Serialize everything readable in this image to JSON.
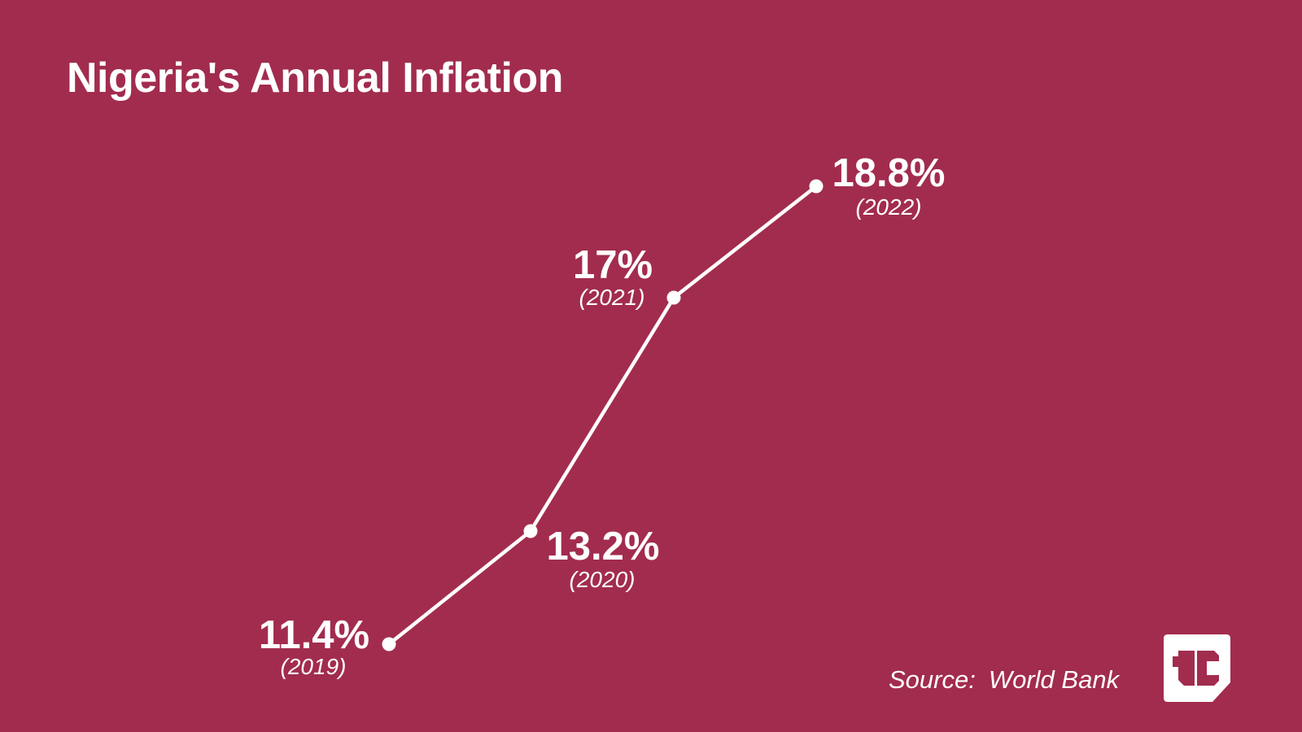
{
  "title": "Nigeria's Annual Inflation",
  "source": {
    "label": "Source:",
    "value": "World Bank"
  },
  "logo": {
    "name": "techcabal-logo",
    "letters": "tc"
  },
  "colors": {
    "background": "#A22C4E",
    "foreground": "#FFFFFF"
  },
  "chart_data": {
    "type": "line",
    "title": "Nigeria's Annual Inflation",
    "x": [
      2019,
      2020,
      2021,
      2022
    ],
    "values": [
      11.4,
      13.2,
      17,
      18.8
    ],
    "points": [
      {
        "year": "2019",
        "value": 11.4,
        "value_label": "11.4%",
        "year_label": "(2019)"
      },
      {
        "year": "2020",
        "value": 13.2,
        "value_label": "13.2%",
        "year_label": "(2020)"
      },
      {
        "year": "2021",
        "value": 17,
        "value_label": "17%",
        "year_label": "(2021)"
      },
      {
        "year": "2022",
        "value": 18.8,
        "value_label": "18.8%",
        "year_label": "(2022)"
      }
    ],
    "xlabel": "",
    "ylabel": "",
    "legend": false,
    "grid": false,
    "line_color": "#FFFFFF",
    "marker": "circle"
  }
}
